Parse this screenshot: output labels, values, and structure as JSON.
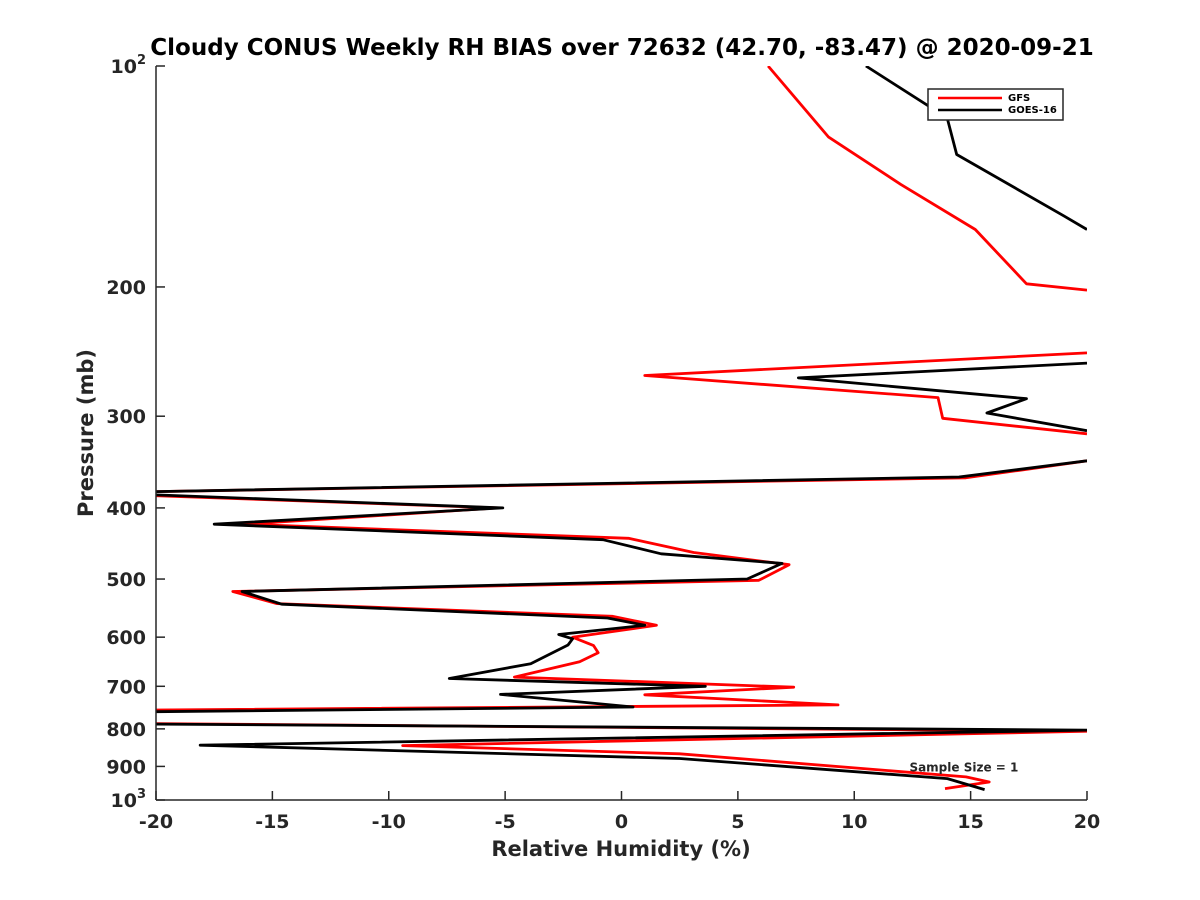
{
  "chart_data": {
    "type": "line",
    "title": "Cloudy CONUS Weekly RH BIAS over 72632 (42.70, -83.47) @ 2020-09-21",
    "xlabel": "Relative Humidity (%)",
    "ylabel": "Pressure (mb)",
    "xlim": [
      -20,
      20
    ],
    "ylim": [
      100,
      1000
    ],
    "yscale": "log",
    "y_reversed": true,
    "grid": false,
    "legend_position": "top-right",
    "xticks": [
      "-20",
      "-15",
      "-10",
      "-5",
      "0",
      "5",
      "10",
      "15",
      "20"
    ],
    "yticks": [
      {
        "value": 100,
        "base": "10",
        "exp": "2"
      },
      {
        "value": 200,
        "label": "200"
      },
      {
        "value": 300,
        "label": "300"
      },
      {
        "value": 400,
        "label": "400"
      },
      {
        "value": 500,
        "label": "500"
      },
      {
        "value": 600,
        "label": "600"
      },
      {
        "value": 700,
        "label": "700"
      },
      {
        "value": 800,
        "label": "800"
      },
      {
        "value": 900,
        "label": "900"
      },
      {
        "value": 1000,
        "base": "10",
        "exp": "3"
      }
    ],
    "annotation": {
      "text": "Sample Size = 1",
      "x": 12.5,
      "y": 900
    },
    "series": [
      {
        "name": "GFS",
        "color": "#ff0000",
        "points": [
          [
            6.3,
            100
          ],
          [
            8.9,
            125
          ],
          [
            12.0,
            145
          ],
          [
            15.2,
            167
          ],
          [
            17.4,
            198
          ],
          [
            20,
            202
          ],
          [
            null,
            null
          ],
          [
            20,
            246
          ],
          [
            1.0,
            264
          ],
          [
            13.6,
            283
          ],
          [
            13.8,
            302
          ],
          [
            20,
            317
          ],
          [
            null,
            null
          ],
          [
            20,
            345
          ],
          [
            14.8,
            364
          ],
          [
            -20,
            380
          ],
          [
            null,
            null
          ],
          [
            -20,
            385
          ],
          [
            -5.3,
            400
          ],
          [
            -16.2,
            421
          ],
          [
            0.3,
            440
          ],
          [
            3.1,
            460
          ],
          [
            7.2,
            478
          ],
          [
            5.9,
            502
          ],
          [
            -16.7,
            520
          ],
          [
            -14.8,
            540
          ],
          [
            -0.4,
            562
          ],
          [
            1.5,
            578
          ],
          [
            -2.1,
            600
          ],
          [
            -1.2,
            616
          ],
          [
            -1.0,
            630
          ],
          [
            -1.8,
            648
          ],
          [
            -4.6,
            680
          ],
          [
            7.4,
            702
          ],
          [
            1.0,
            719
          ],
          [
            9.3,
            742
          ],
          [
            -20,
            754
          ],
          [
            null,
            null
          ],
          [
            -20,
            787
          ],
          [
            20,
            806
          ],
          [
            -9.4,
            843
          ],
          [
            2.5,
            865
          ],
          [
            14.8,
            930
          ],
          [
            15.8,
            945
          ],
          [
            13.9,
            965
          ]
        ]
      },
      {
        "name": "GOES-16",
        "color": "#000000",
        "points": [
          [
            10.5,
            100
          ],
          [
            13.5,
            115
          ],
          [
            14.0,
            118
          ],
          [
            14.4,
            132
          ],
          [
            19.0,
            160
          ],
          [
            20,
            167
          ],
          [
            null,
            null
          ],
          [
            20,
            254
          ],
          [
            7.6,
            266
          ],
          [
            17.4,
            284
          ],
          [
            15.7,
            297
          ],
          [
            20,
            314
          ],
          [
            null,
            null
          ],
          [
            20,
            345
          ],
          [
            14.5,
            363
          ],
          [
            -20,
            380
          ],
          [
            null,
            null
          ],
          [
            -20,
            384
          ],
          [
            -5.1,
            400
          ],
          [
            -17.5,
            421
          ],
          [
            -0.8,
            442
          ],
          [
            1.7,
            462
          ],
          [
            6.9,
            476
          ],
          [
            5.4,
            500
          ],
          [
            -16.3,
            520
          ],
          [
            -14.6,
            541
          ],
          [
            -0.6,
            565
          ],
          [
            1.0,
            578
          ],
          [
            -2.7,
            595
          ],
          [
            -2.1,
            603
          ],
          [
            -2.3,
            615
          ],
          [
            -3.9,
            652
          ],
          [
            -7.4,
            683
          ],
          [
            3.6,
            700
          ],
          [
            -5.2,
            718
          ],
          [
            0.5,
            747
          ],
          [
            -20,
            758
          ],
          [
            null,
            null
          ],
          [
            -20,
            788
          ],
          [
            20,
            803
          ],
          [
            -18.1,
            842
          ],
          [
            2.5,
            878
          ],
          [
            14.0,
            935
          ],
          [
            15.6,
            968
          ]
        ]
      }
    ]
  }
}
